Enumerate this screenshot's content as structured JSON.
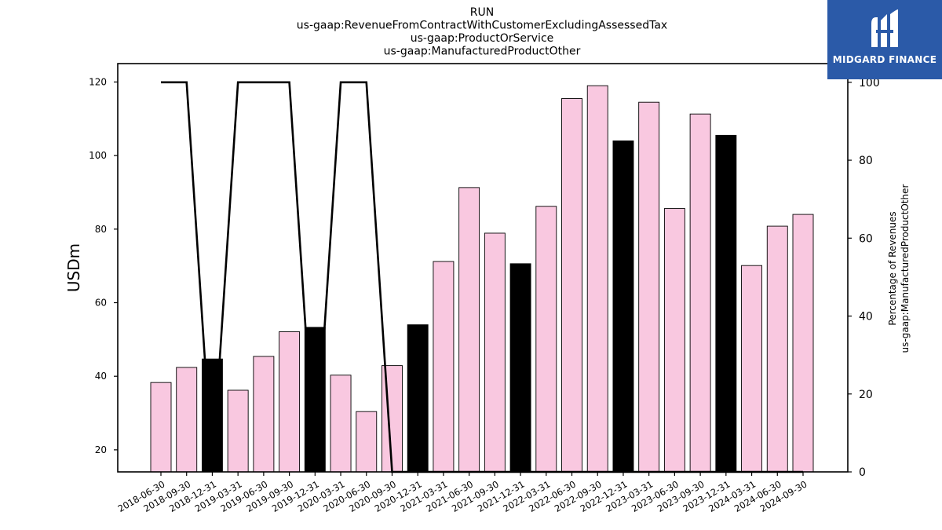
{
  "chart_data": {
    "type": "bar",
    "title_lines": [
      "RUN",
      "us-gaap:RevenueFromContractWithCustomerExcludingAssessedTax",
      "us-gaap:ProductOrService",
      "us-gaap:ManufacturedProductOther"
    ],
    "ylabel": "USDm",
    "y2label_lines": [
      "Percentage of Revenues",
      "us-gaap:ManufacturedProductOther"
    ],
    "ylim": [
      14,
      125
    ],
    "y2lim": [
      0,
      104.8
    ],
    "yticks": [
      20,
      40,
      60,
      80,
      100,
      120
    ],
    "y2ticks": [
      0,
      20,
      40,
      60,
      80,
      100
    ],
    "categories": [
      "2018-06-30",
      "2018-09-30",
      "2018-12-31",
      "2019-03-31",
      "2019-06-30",
      "2019-09-30",
      "2019-12-31",
      "2020-03-31",
      "2020-06-30",
      "2020-09-30",
      "2020-12-31",
      "2021-03-31",
      "2021-06-30",
      "2021-09-30",
      "2021-12-31",
      "2022-03-31",
      "2022-06-30",
      "2022-09-30",
      "2022-12-31",
      "2023-03-31",
      "2023-06-30",
      "2023-09-30",
      "2023-12-31",
      "2024-03-31",
      "2024-06-30",
      "2024-09-30"
    ],
    "values": [
      38.3,
      42.4,
      44.7,
      36.2,
      45.4,
      52.1,
      53.3,
      40.3,
      30.4,
      42.9,
      54.0,
      71.2,
      91.3,
      78.9,
      70.6,
      86.2,
      115.5,
      119.0,
      104.0,
      114.5,
      85.6,
      111.3,
      105.5,
      70.1,
      80.8,
      84.0
    ],
    "bar_colors": [
      "#f9c8e0",
      "#f9c8e0",
      "#000000",
      "#f9c8e0",
      "#f9c8e0",
      "#f9c8e0",
      "#000000",
      "#f9c8e0",
      "#f9c8e0",
      "#f9c8e0",
      "#000000",
      "#f9c8e0",
      "#f9c8e0",
      "#f9c8e0",
      "#000000",
      "#f9c8e0",
      "#f9c8e0",
      "#f9c8e0",
      "#000000",
      "#f9c8e0",
      "#f9c8e0",
      "#f9c8e0",
      "#000000",
      "#f9c8e0",
      "#f9c8e0",
      "#f9c8e0"
    ],
    "line_series": {
      "axis": "right",
      "color": "#000000",
      "values": [
        100,
        100,
        0,
        100,
        100,
        100,
        0,
        100,
        100,
        0,
        0,
        0,
        0,
        0,
        0,
        0,
        0,
        0,
        0,
        0,
        0,
        0,
        0,
        0,
        0,
        0
      ]
    },
    "grid": false
  },
  "brand": {
    "name": "MIDGARD FINANCE",
    "bg_color": "#2b5aa8",
    "icon": "midgard-logo-icon"
  }
}
